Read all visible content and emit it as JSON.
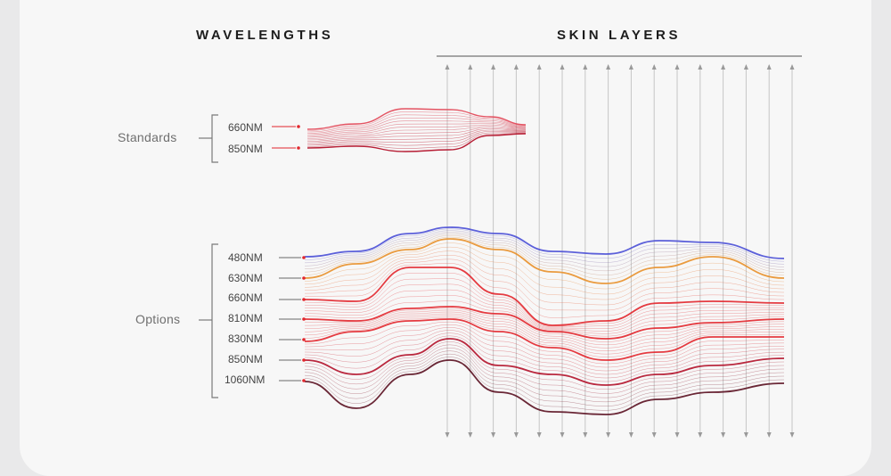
{
  "headings": {
    "wavelengths": "WAVELENGTHS",
    "skin_layers": "SKIN LAYERS"
  },
  "groups": {
    "standards": {
      "label": "Standards",
      "wavelengths": [
        "660NM",
        "850NM"
      ]
    },
    "options": {
      "label": "Options",
      "wavelengths": [
        "480NM",
        "630NM",
        "660NM",
        "810NM",
        "830NM",
        "850NM",
        "1060NM"
      ]
    }
  },
  "colors": {
    "blue": "#4a4fd6",
    "orange": "#e8902a",
    "red": "#e2262c",
    "deep_red": "#b3122a",
    "dark": "#5a1020",
    "axis": "#8c8c8c"
  }
}
